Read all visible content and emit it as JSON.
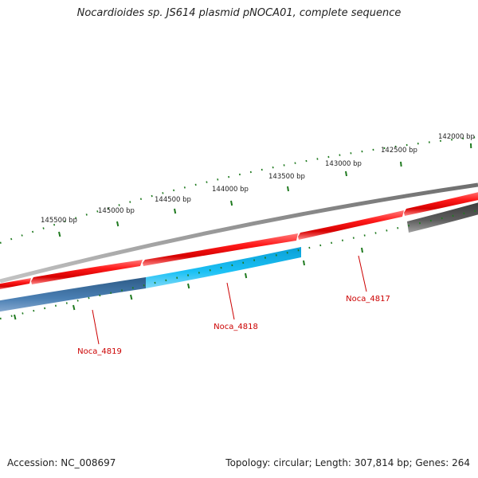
{
  "title": "Nocardioides sp. JS614 plasmid pNOCA01, complete sequence",
  "footer": {
    "accession": "Accession: NC_008697",
    "summary": "Topology: circular; Length: 307,814 bp; Genes: 264"
  },
  "colors": {
    "backbone": "#8a8a8a",
    "forward_gene": "#e60000",
    "reverse_gene_dark": "#3f6f9e",
    "reverse_gene_light": "#13b3ea",
    "other_feature": "#5a5a5a",
    "tick": "#1f7a1f",
    "gene_label": "#cc0000"
  },
  "ruler": {
    "labels": [
      "142000 bp",
      "142500 bp",
      "143000 bp",
      "143500 bp",
      "144000 bp",
      "144500 bp",
      "145000 bp",
      "145500 bp"
    ]
  },
  "genes": {
    "labels": [
      "Noca_4817",
      "Noca_4818",
      "Noca_4819"
    ]
  }
}
